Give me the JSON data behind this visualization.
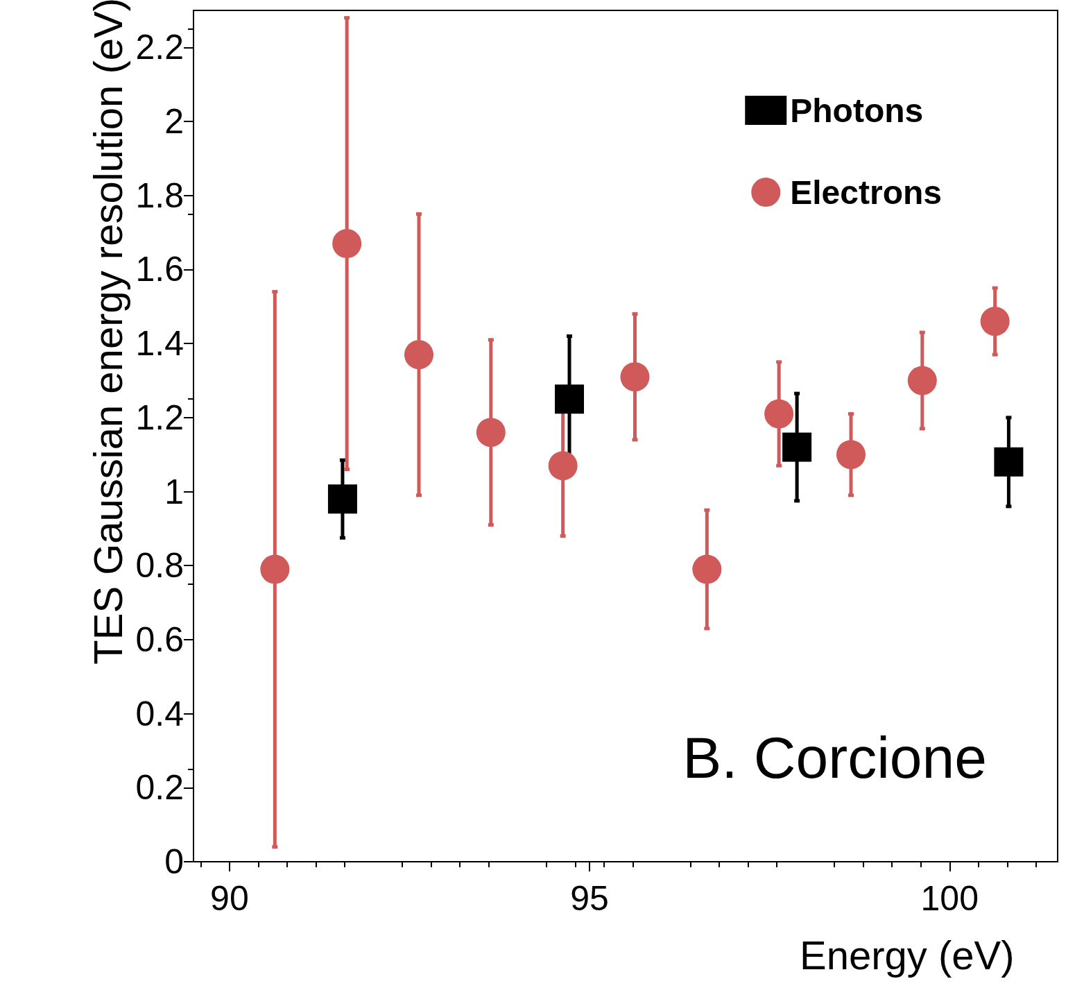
{
  "chart_data": {
    "type": "scatter",
    "xlabel": "Energy (eV)",
    "ylabel": "TES Gaussian energy resolution (eV)",
    "xlim": [
      89.5,
      101.5
    ],
    "xticks": [
      90,
      95,
      100
    ],
    "ylim": [
      0,
      2.3
    ],
    "yticks": [
      0,
      0.2,
      0.4,
      0.6,
      0.8,
      1,
      1.2,
      1.4,
      1.6,
      1.8,
      2,
      2.2
    ],
    "grid": false,
    "legend": "top right",
    "annotations": [
      "B. Corcione"
    ],
    "series": [
      {
        "name": "Photons",
        "color": "#000000",
        "marker": "square",
        "x": [
          91.57,
          94.72,
          97.88,
          100.82
        ],
        "values": [
          0.98,
          1.25,
          1.12,
          1.08
        ],
        "errors": [
          0.105,
          0.17,
          0.145,
          0.12
        ]
      },
      {
        "name": "Electrons",
        "color": "#d05a5a",
        "marker": "circle",
        "x": [
          90.63,
          91.63,
          92.63,
          93.63,
          94.63,
          95.63,
          96.63,
          97.63,
          98.63,
          99.62,
          100.63
        ],
        "values": [
          0.79,
          1.67,
          1.37,
          1.16,
          1.07,
          1.31,
          0.79,
          1.21,
          1.1,
          1.3,
          1.46
        ],
        "errors": [
          0.75,
          0.61,
          0.38,
          0.25,
          0.19,
          0.17,
          0.16,
          0.14,
          0.11,
          0.13,
          0.09
        ]
      }
    ]
  }
}
